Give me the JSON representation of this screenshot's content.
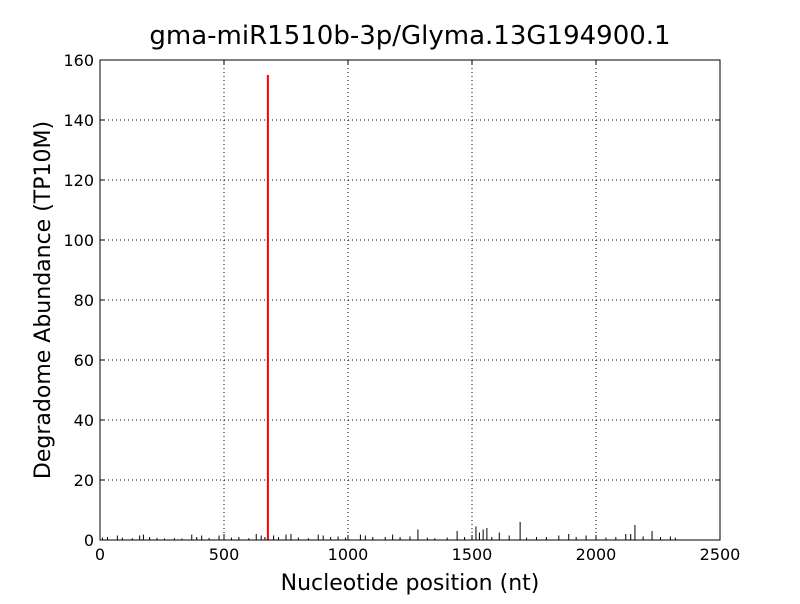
{
  "chart_data": {
    "type": "stem",
    "title": "gma-miR1510b-3p/Glyma.13G194900.1",
    "x_label": "Nucleotide position (nt)",
    "y_label": "Degradome Abundance (TP10M)",
    "xlim": [
      0,
      2500
    ],
    "xticks": [
      0,
      500,
      1000,
      1500,
      2000,
      2500
    ],
    "ylim": [
      0,
      160
    ],
    "yticks": [
      0,
      20,
      40,
      60,
      80,
      100,
      120,
      140,
      160
    ],
    "grid": true,
    "series": [
      {
        "color": "#000000",
        "x": [
          10,
          30,
          70,
          90,
          130,
          160,
          175,
          200,
          230,
          260,
          300,
          330,
          370,
          390,
          410,
          440,
          480,
          500,
          530,
          560,
          600,
          630,
          650,
          665,
          700,
          720,
          750,
          770,
          800,
          840,
          880,
          900,
          930,
          960,
          990,
          1050,
          1070,
          1100,
          1150,
          1180,
          1210,
          1250,
          1282,
          1320,
          1350,
          1400,
          1440,
          1470,
          1500,
          1516,
          1530,
          1545,
          1560,
          1580,
          1610,
          1650,
          1694,
          1720,
          1760,
          1800,
          1850,
          1890,
          1920,
          1960,
          2000,
          2040,
          2080,
          2120,
          2140,
          2157,
          2190,
          2226,
          2260,
          2300,
          2320
        ],
        "values": [
          0.8,
          1,
          1.5,
          0.8,
          0.6,
          1.5,
          1.8,
          1,
          0.7,
          0.5,
          0.6,
          0.5,
          1.8,
          1,
          1.5,
          0.7,
          1.5,
          2,
          0.8,
          1,
          0.6,
          2,
          1.5,
          1,
          1.5,
          1,
          1.8,
          2,
          0.8,
          0.6,
          1.8,
          1.5,
          1,
          1.2,
          0.8,
          1.8,
          1.5,
          1,
          1,
          1.8,
          1,
          1.2,
          3.5,
          0.8,
          0.6,
          0.8,
          3,
          1,
          1,
          4.5,
          2.5,
          3.5,
          4,
          1,
          2.5,
          1.5,
          6,
          0.8,
          1,
          1,
          1.5,
          2,
          1,
          1.5,
          1.2,
          0.8,
          1,
          2,
          2,
          5,
          1.2,
          3,
          1,
          1.2,
          0.8
        ]
      },
      {
        "color": "#ff0000",
        "x": [
          677
        ],
        "values": [
          155
        ]
      }
    ]
  }
}
